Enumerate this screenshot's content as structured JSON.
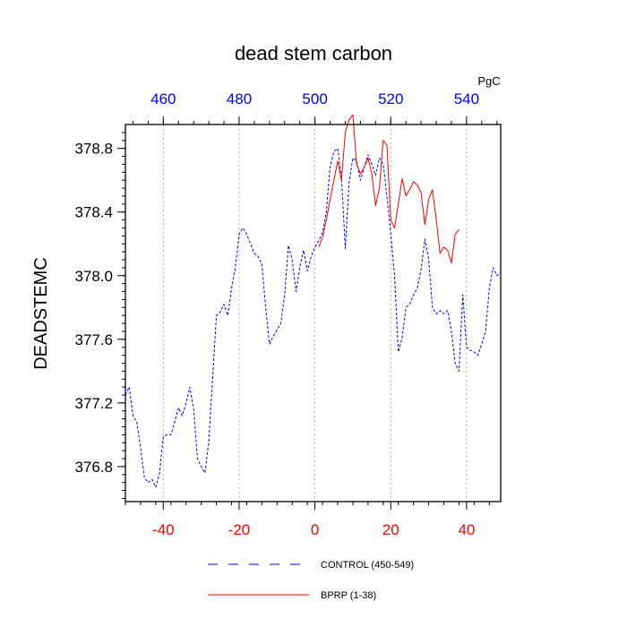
{
  "chart_data": {
    "type": "line",
    "title": "dead stem carbon",
    "ylabel": "DEADSTEMC",
    "top_axis_unit": "PgC",
    "xlim": [
      -50,
      49
    ],
    "ylim": [
      376.58,
      378.95
    ],
    "top_xlim": [
      450,
      549
    ],
    "x_ticks": [
      -40,
      -20,
      0,
      20,
      40
    ],
    "x_tick_labels": [
      "-40",
      "-20",
      "0",
      "20",
      "40"
    ],
    "top_ticks": [
      460,
      480,
      500,
      520,
      540
    ],
    "top_tick_labels": [
      "460",
      "480",
      "500",
      "520",
      "540"
    ],
    "y_ticks": [
      376.8,
      377.2,
      377.6,
      378.0,
      378.4,
      378.8
    ],
    "y_tick_labels": [
      "376.8",
      "377.2",
      "377.6",
      "378.0",
      "378.4",
      "378.8"
    ],
    "grid": "vertical dashed lines at labeled x ticks",
    "legend_placement": "bottom",
    "colors": {
      "bottom_axis": "#ff0000",
      "top_axis": "#0000ff",
      "control_line": "#0000ff",
      "bprp_line": "#ff0000",
      "grid": "#9a9a9a"
    },
    "series": [
      {
        "name": "CONTROL (450-549)",
        "style": "dashed",
        "color": "#0000ff",
        "x": [
          -50,
          -49,
          -48,
          -47,
          -46,
          -45,
          -44,
          -43,
          -42,
          -41,
          -40,
          -39,
          -38,
          -37,
          -36,
          -35,
          -34,
          -33,
          -32,
          -31,
          -30,
          -29,
          -28,
          -27,
          -26,
          -25,
          -24,
          -23,
          -22,
          -21,
          -20,
          -19,
          -18,
          -17,
          -16,
          -15,
          -14,
          -13,
          -12,
          -11,
          -10,
          -9,
          -8,
          -7,
          -6,
          -5,
          -4,
          -3,
          -2,
          -1,
          0,
          1,
          2,
          3,
          4,
          5,
          6,
          7,
          8,
          9,
          10,
          11,
          12,
          13,
          14,
          15,
          16,
          17,
          18,
          19,
          20,
          21,
          22,
          23,
          24,
          25,
          26,
          27,
          28,
          29,
          30,
          31,
          32,
          33,
          34,
          35,
          36,
          37,
          38,
          39,
          40,
          41,
          42,
          43,
          44,
          45,
          46,
          47,
          48,
          49
        ],
        "y": [
          377.25,
          377.3,
          377.12,
          377.08,
          376.92,
          376.73,
          376.7,
          376.72,
          376.67,
          376.76,
          376.99,
          377.0,
          377.0,
          377.08,
          377.17,
          377.12,
          377.2,
          377.3,
          377.16,
          376.85,
          376.8,
          376.76,
          376.96,
          377.35,
          377.75,
          377.77,
          377.82,
          377.75,
          377.92,
          378.05,
          378.26,
          378.3,
          378.26,
          378.2,
          378.14,
          378.12,
          378.07,
          377.8,
          377.57,
          377.62,
          377.66,
          377.7,
          377.88,
          378.19,
          378.1,
          377.9,
          378.05,
          378.16,
          378.03,
          378.12,
          378.18,
          378.22,
          378.27,
          378.4,
          378.68,
          378.78,
          378.8,
          378.62,
          378.17,
          378.58,
          378.74,
          378.72,
          378.6,
          378.68,
          378.76,
          378.7,
          378.63,
          378.74,
          378.7,
          378.5,
          378.26,
          378.0,
          377.52,
          377.61,
          377.8,
          377.82,
          377.88,
          377.92,
          378.04,
          378.23,
          378.1,
          377.8,
          377.76,
          377.78,
          377.76,
          377.78,
          377.65,
          377.45,
          377.4,
          377.88,
          377.55,
          377.53,
          377.52,
          377.5,
          377.57,
          377.65,
          377.92,
          378.05,
          378.0,
          378.02
        ]
      },
      {
        "name": "BPRP (1-38)",
        "style": "solid",
        "color": "#ff0000",
        "x": [
          1,
          2,
          3,
          4,
          5,
          6,
          7,
          8,
          9,
          10,
          11,
          12,
          13,
          14,
          15,
          16,
          17,
          18,
          19,
          20,
          21,
          22,
          23,
          24,
          25,
          26,
          27,
          28,
          29,
          30,
          31,
          32,
          33,
          34,
          35,
          36,
          37,
          38
        ],
        "y": [
          378.18,
          378.24,
          378.35,
          378.48,
          378.6,
          378.72,
          378.6,
          378.9,
          378.98,
          379.01,
          378.7,
          378.64,
          378.68,
          378.74,
          378.64,
          378.44,
          378.55,
          378.85,
          378.82,
          378.35,
          378.3,
          378.45,
          378.61,
          378.5,
          378.54,
          378.59,
          378.57,
          378.52,
          378.32,
          378.48,
          378.54,
          378.35,
          378.14,
          378.18,
          378.16,
          378.08,
          378.26,
          378.29
        ]
      }
    ]
  }
}
